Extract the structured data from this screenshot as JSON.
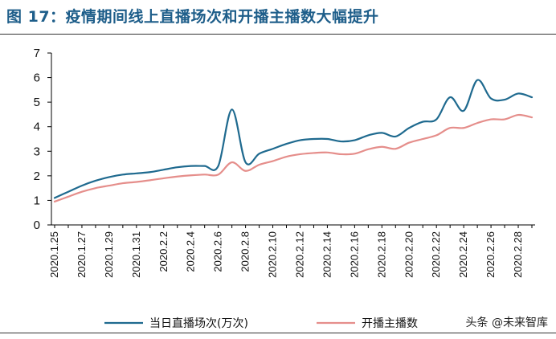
{
  "header": {
    "title": "图 17：疫情期间线上直播场次和开播主播数大幅提升"
  },
  "watermark": {
    "text": "头条 @未来智库"
  },
  "colors": {
    "series1": "#1f6a8f",
    "series2": "#e58e8b",
    "title": "#1e5e8a"
  },
  "chart_data": {
    "type": "line",
    "title": "",
    "xlabel": "",
    "ylabel": "",
    "ylim": [
      0,
      7
    ],
    "yticks": [
      0,
      1,
      2,
      3,
      4,
      5,
      6,
      7
    ],
    "grid": false,
    "legend": "bottom",
    "x": [
      "2020.1.25",
      "2020.1.26",
      "2020.1.27",
      "2020.1.28",
      "2020.1.29",
      "2020.1.30",
      "2020.1.31",
      "2020.2.1",
      "2020.2.2",
      "2020.2.3",
      "2020.2.4",
      "2020.2.5",
      "2020.2.6",
      "2020.2.7",
      "2020.2.8",
      "2020.2.9",
      "2020.2.10",
      "2020.2.11",
      "2020.2.12",
      "2020.2.13",
      "2020.2.14",
      "2020.2.15",
      "2020.2.16",
      "2020.2.17",
      "2020.2.18",
      "2020.2.19",
      "2020.2.20",
      "2020.2.21",
      "2020.2.22",
      "2020.2.23",
      "2020.2.24",
      "2020.2.25",
      "2020.2.26",
      "2020.2.27",
      "2020.2.28",
      "2020.2.29"
    ],
    "xtick_labels": [
      "2020.1.25",
      "2020.1.27",
      "2020.1.29",
      "2020.1.31",
      "2020.2.2",
      "2020.2.4",
      "2020.2.6",
      "2020.2.8",
      "2020.2.10",
      "2020.2.12",
      "2020.2.14",
      "2020.2.16",
      "2020.2.18",
      "2020.2.20",
      "2020.2.22",
      "2020.2.24",
      "2020.2.26",
      "2020.2.28"
    ],
    "series": [
      {
        "name": "当日直播场次(万次)",
        "values": [
          1.1,
          1.35,
          1.6,
          1.8,
          1.95,
          2.05,
          2.1,
          2.15,
          2.25,
          2.35,
          2.4,
          2.4,
          2.4,
          4.7,
          2.55,
          2.9,
          3.1,
          3.3,
          3.45,
          3.5,
          3.5,
          3.4,
          3.45,
          3.65,
          3.75,
          3.6,
          3.95,
          4.2,
          4.3,
          5.2,
          4.65,
          5.9,
          5.15,
          5.1,
          5.35,
          5.2
        ]
      },
      {
        "name": "开播主播数",
        "values": [
          0.95,
          1.15,
          1.35,
          1.5,
          1.6,
          1.7,
          1.75,
          1.82,
          1.9,
          1.97,
          2.02,
          2.05,
          2.05,
          2.55,
          2.2,
          2.45,
          2.6,
          2.78,
          2.88,
          2.93,
          2.95,
          2.88,
          2.9,
          3.08,
          3.18,
          3.1,
          3.35,
          3.5,
          3.65,
          3.95,
          3.95,
          4.15,
          4.3,
          4.3,
          4.48,
          4.38
        ]
      }
    ]
  }
}
